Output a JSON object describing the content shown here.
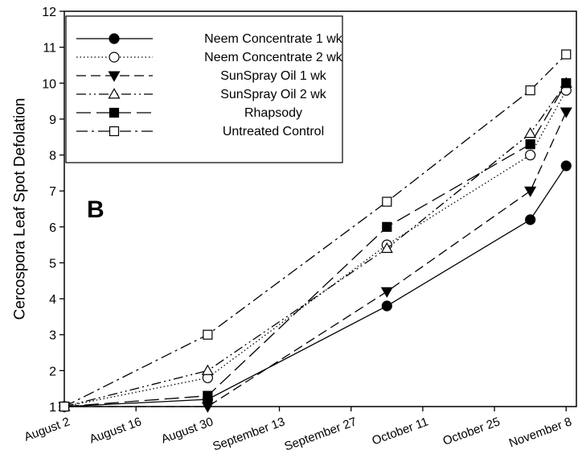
{
  "chart_data": {
    "type": "line",
    "panel_label": "B",
    "ylabel": "Cercospora Leaf Spot Defolation",
    "xlabel": "",
    "x_ticks": [
      "August 2",
      "August 16",
      "August 30",
      "September 13",
      "September 27",
      "October 11",
      "October 25",
      "November 8"
    ],
    "x_tick_days": [
      0,
      14,
      28,
      42,
      56,
      70,
      84,
      98
    ],
    "y_ticks": [
      "1",
      "2",
      "3",
      "4",
      "5",
      "6",
      "7",
      "8",
      "9",
      "10",
      "11",
      "12"
    ],
    "ylim": [
      1,
      12
    ],
    "grid": false,
    "legend_position": "top-left",
    "series": [
      {
        "name": "Neem Concentrate 1 wk",
        "marker": "filled-circle",
        "line": "solid",
        "x": [
          0,
          28,
          63,
          91,
          98
        ],
        "values": [
          1.0,
          1.2,
          3.8,
          6.2,
          7.7
        ]
      },
      {
        "name": "Neem Concentrate 2 wk",
        "marker": "open-circle",
        "line": "dotted",
        "x": [
          0,
          28,
          63,
          91,
          98
        ],
        "values": [
          1.0,
          1.8,
          5.5,
          8.0,
          9.8
        ]
      },
      {
        "name": "SunSpray Oil 1 wk",
        "marker": "filled-triangle-down",
        "line": "dashed",
        "x": [
          0,
          28,
          63,
          91,
          98
        ],
        "values": [
          1.0,
          1.0,
          4.2,
          7.0,
          9.2
        ]
      },
      {
        "name": "SunSpray Oil 2 wk",
        "marker": "open-triangle-up",
        "line": "dash-dot-dot",
        "x": [
          0,
          28,
          63,
          91,
          98
        ],
        "values": [
          1.0,
          2.0,
          5.4,
          8.6,
          10.0
        ]
      },
      {
        "name": "Rhapsody",
        "marker": "filled-square",
        "line": "long-dash",
        "x": [
          0,
          28,
          63,
          91,
          98
        ],
        "values": [
          1.0,
          1.3,
          6.0,
          8.3,
          10.0
        ]
      },
      {
        "name": "Untreated Control",
        "marker": "open-square",
        "line": "dash-dot",
        "x": [
          0,
          28,
          63,
          91,
          98
        ],
        "values": [
          1.0,
          3.0,
          6.7,
          9.8,
          10.8
        ]
      }
    ]
  }
}
